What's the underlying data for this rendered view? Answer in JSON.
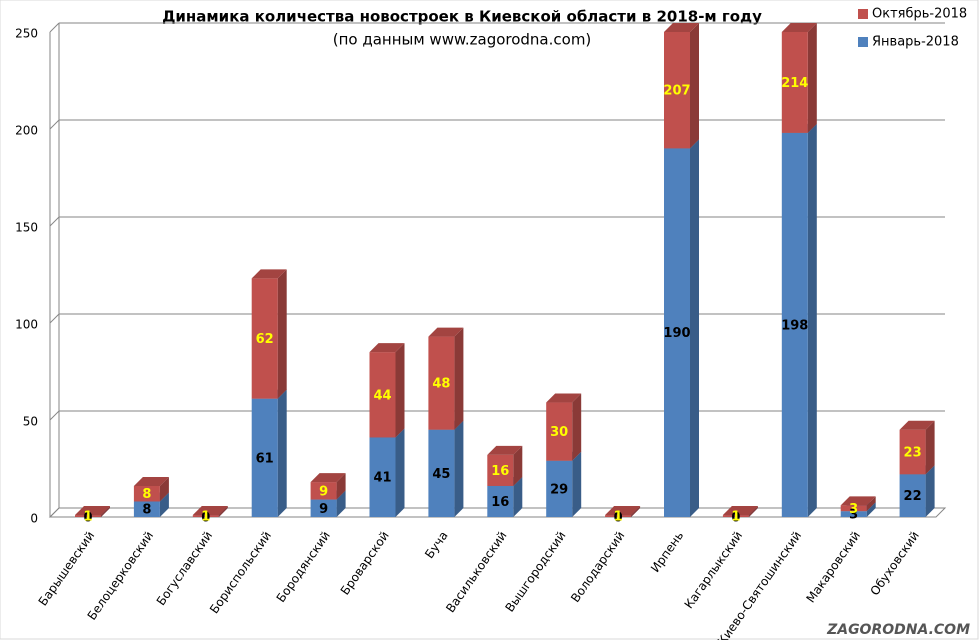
{
  "chart_data": {
    "type": "stacked_bar_3d",
    "title": "Динамика количества новостроек в Киевской области в 2018-м году",
    "subtitle": "(по данным www.zagorodna.com)",
    "watermark": "ZAGORODNA.COM",
    "categories": [
      "Барышевский",
      "Белоцерковский",
      "Богуславский",
      "Бориспольский",
      "Бородянский",
      "Броварской",
      "Буча",
      "Васильковский",
      "Вышгородский",
      "Володарский",
      "Ирпень",
      "Кагарлыкский",
      "Киево-Святошинский",
      "Макаровский",
      "Обуховский"
    ],
    "series": [
      {
        "name": "Январь-2018",
        "color": "#4f81bd",
        "label_color": "#000000",
        "values": [
          0,
          8,
          0,
          61,
          9,
          41,
          45,
          16,
          29,
          0,
          190,
          0,
          198,
          3,
          22
        ]
      },
      {
        "name": "Октябрь-2018",
        "color": "#c0504d",
        "label_color": "#ffff00",
        "values": [
          1,
          8,
          1,
          62,
          9,
          44,
          48,
          16,
          30,
          1,
          207,
          1,
          214,
          3,
          23
        ]
      }
    ],
    "ylim": [
      0,
      250
    ],
    "yticks": [
      0,
      50,
      100,
      150,
      200,
      250
    ],
    "grid": true,
    "legend": "top-right"
  }
}
